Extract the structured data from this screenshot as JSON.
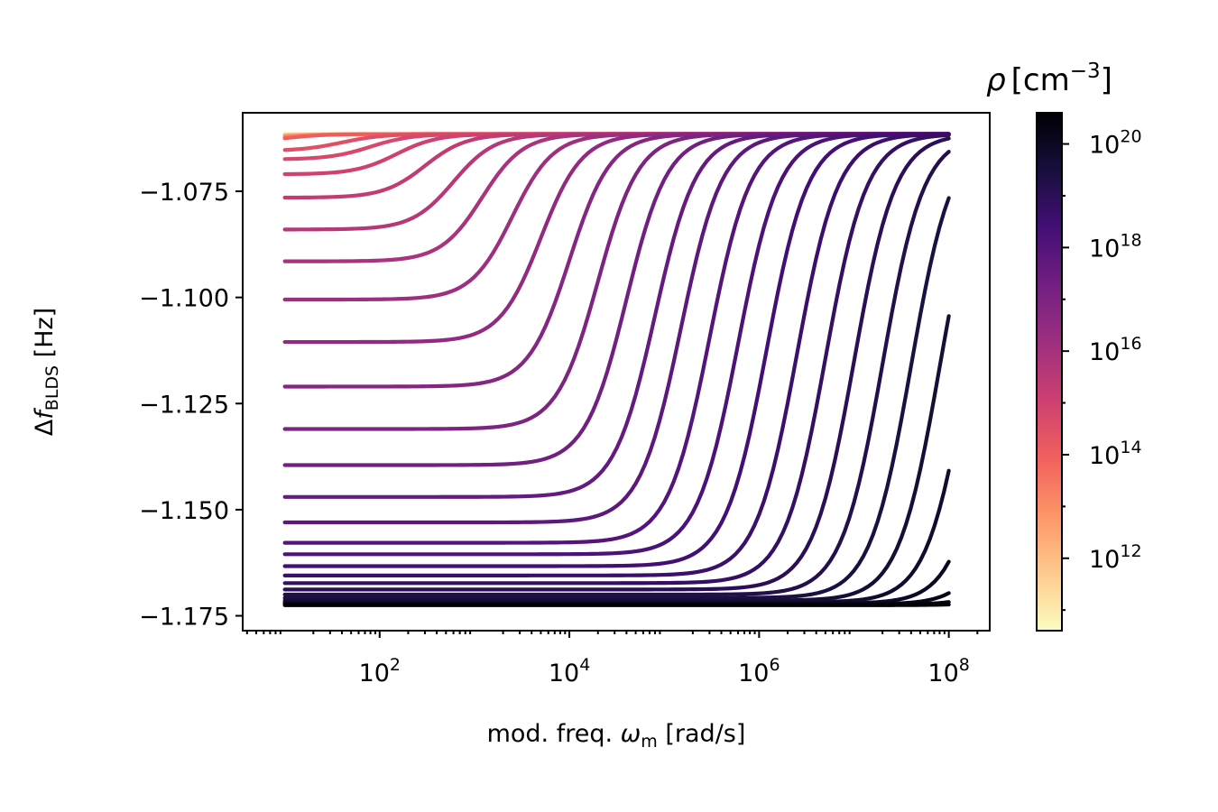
{
  "chart_data": {
    "type": "line",
    "xlabel": {
      "base": "mod. freq. ",
      "symbol": "ω",
      "sub": "m",
      "unit": " [rad/s]"
    },
    "ylabel": {
      "base": "Δ",
      "symbol": "f",
      "sub": "BLDS",
      "unit": " [Hz]"
    },
    "x_scale": "log",
    "x_range": [
      10,
      100000000
    ],
    "x_plot_range": [
      3.6,
      270000000
    ],
    "x_ticks": [
      {
        "value": 100,
        "base": "10",
        "exp": "2"
      },
      {
        "value": 10000,
        "base": "10",
        "exp": "4"
      },
      {
        "value": 1000000,
        "base": "10",
        "exp": "6"
      },
      {
        "value": 100000000,
        "base": "10",
        "exp": "8"
      }
    ],
    "ylim": [
      -1.1785,
      -1.0565
    ],
    "y_ticks": [
      {
        "value": -1.075,
        "label": "−1.075"
      },
      {
        "value": -1.1,
        "label": "−1.100"
      },
      {
        "value": -1.125,
        "label": "−1.125"
      },
      {
        "value": -1.15,
        "label": "−1.150"
      },
      {
        "value": -1.175,
        "label": "−1.175"
      }
    ],
    "grid": false,
    "legend": "none",
    "high_freq_value": -1.0615,
    "low_freq_limit": -1.1725,
    "series": [
      {
        "rho": 100000000000.0,
        "low_value": -1.0615,
        "corner_freq": 10
      },
      {
        "rho": 1000000000000.0,
        "low_value": -1.062,
        "corner_freq": 10
      },
      {
        "rho": 10000000000000.0,
        "low_value": -1.0625,
        "corner_freq": 10
      },
      {
        "rho": 100000000000000.0,
        "low_value": -1.0635,
        "corner_freq": 10
      },
      {
        "rho": 300000000000000.0,
        "low_value": -1.0655,
        "corner_freq": 40
      },
      {
        "rho": 600000000000000.0,
        "low_value": -1.0675,
        "corner_freq": 80
      },
      {
        "rho": 1000000000000000.0,
        "low_value": -1.071,
        "corner_freq": 150
      },
      {
        "rho": 2000000000000000.0,
        "low_value": -1.0765,
        "corner_freq": 300
      },
      {
        "rho": 4000000000000000.0,
        "low_value": -1.084,
        "corner_freq": 600
      },
      {
        "rho": 8000000000000000.0,
        "low_value": -1.0915,
        "corner_freq": 1200
      },
      {
        "rho": 1.5e+16,
        "low_value": -1.1005,
        "corner_freq": 2500
      },
      {
        "rho": 3e+16,
        "low_value": -1.1105,
        "corner_freq": 5000
      },
      {
        "rho": 6e+16,
        "low_value": -1.121,
        "corner_freq": 10000
      },
      {
        "rho": 1e+17,
        "low_value": -1.131,
        "corner_freq": 20000
      },
      {
        "rho": 2e+17,
        "low_value": -1.1395,
        "corner_freq": 40000
      },
      {
        "rho": 4e+17,
        "low_value": -1.147,
        "corner_freq": 80000
      },
      {
        "rho": 6e+17,
        "low_value": -1.153,
        "corner_freq": 150000
      },
      {
        "rho": 1e+18,
        "low_value": -1.1578,
        "corner_freq": 300000
      },
      {
        "rho": 1.5e+18,
        "low_value": -1.1605,
        "corner_freq": 600000
      },
      {
        "rho": 2.5e+18,
        "low_value": -1.1633,
        "corner_freq": 1200000
      },
      {
        "rho": 4e+18,
        "low_value": -1.1655,
        "corner_freq": 2500000
      },
      {
        "rho": 6e+18,
        "low_value": -1.1673,
        "corner_freq": 5000000
      },
      {
        "rho": 1e+19,
        "low_value": -1.1688,
        "corner_freq": 10000000
      },
      {
        "rho": 1.6e+19,
        "low_value": -1.17,
        "corner_freq": 20000000
      },
      {
        "rho": 2.5e+19,
        "low_value": -1.1708,
        "corner_freq": 40000000
      },
      {
        "rho": 4e+19,
        "low_value": -1.1714,
        "corner_freq": 80000000
      },
      {
        "rho": 6e+19,
        "low_value": -1.1718,
        "corner_freq": 160000000
      },
      {
        "rho": 1e+20,
        "low_value": -1.1721,
        "corner_freq": 320000000
      },
      {
        "rho": 1.6e+20,
        "low_value": -1.1723,
        "corner_freq": 640000000
      },
      {
        "rho": 2.5e+20,
        "low_value": -1.1724,
        "corner_freq": 1300000000
      },
      {
        "rho": 4e+20,
        "low_value": -1.1725,
        "corner_freq": 2600000000
      }
    ],
    "colorbar": {
      "title": {
        "symbol": "ρ",
        "unit": "cm",
        "exp": "−3"
      },
      "scale": "log",
      "range": [
        40000000000.0,
        4e+20
      ],
      "colormap": "magma_r",
      "ticks": [
        {
          "value": 1000000000000.0,
          "base": "10",
          "exp": "12"
        },
        {
          "value": 100000000000000.0,
          "base": "10",
          "exp": "14"
        },
        {
          "value": 1e+16,
          "base": "10",
          "exp": "16"
        },
        {
          "value": 1e+18,
          "base": "10",
          "exp": "18"
        },
        {
          "value": 1e+20,
          "base": "10",
          "exp": "20"
        }
      ],
      "colors": [
        "#fcfdbf",
        "#feca8d",
        "#fd9668",
        "#f1605d",
        "#cd4071",
        "#9e2f7f",
        "#721f81",
        "#440f76",
        "#180f3d",
        "#000004"
      ]
    }
  }
}
